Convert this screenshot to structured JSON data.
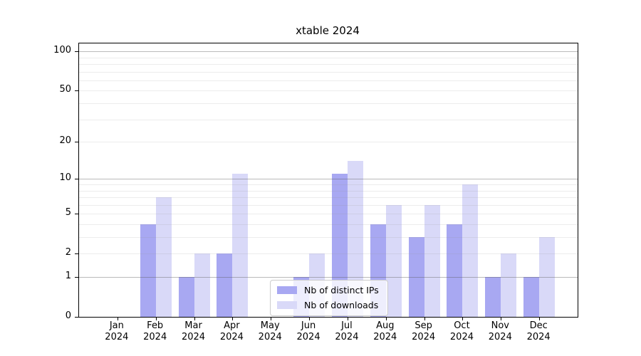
{
  "chart_data": {
    "type": "bar",
    "title": "xtable 2024",
    "x_months": [
      "Jan",
      "Feb",
      "Mar",
      "Apr",
      "May",
      "Jun",
      "Jul",
      "Aug",
      "Sep",
      "Oct",
      "Nov",
      "Dec"
    ],
    "x_year": "2024",
    "series": [
      {
        "name": "Nb of distinct IPs",
        "color": "#a8a8f2",
        "values": [
          0,
          4,
          1,
          2,
          0,
          1,
          11,
          4,
          3,
          4,
          1,
          1
        ]
      },
      {
        "name": "Nb of downloads",
        "color": "#d9d9f8",
        "values": [
          0,
          7,
          2,
          11,
          0,
          2,
          14,
          6,
          6,
          9,
          2,
          3
        ]
      }
    ],
    "y_scale": "log10(value+1)",
    "y_ticks": [
      0,
      1,
      2,
      5,
      10,
      20,
      50,
      100
    ],
    "y_minor_gridlines": [
      3,
      4,
      6,
      7,
      8,
      9,
      30,
      40,
      60,
      70,
      80,
      90
    ],
    "y_major_gridlines": [
      1,
      10,
      100
    ],
    "ylim": [
      0,
      115
    ],
    "grid": true,
    "legend_position": "bottom-center"
  }
}
